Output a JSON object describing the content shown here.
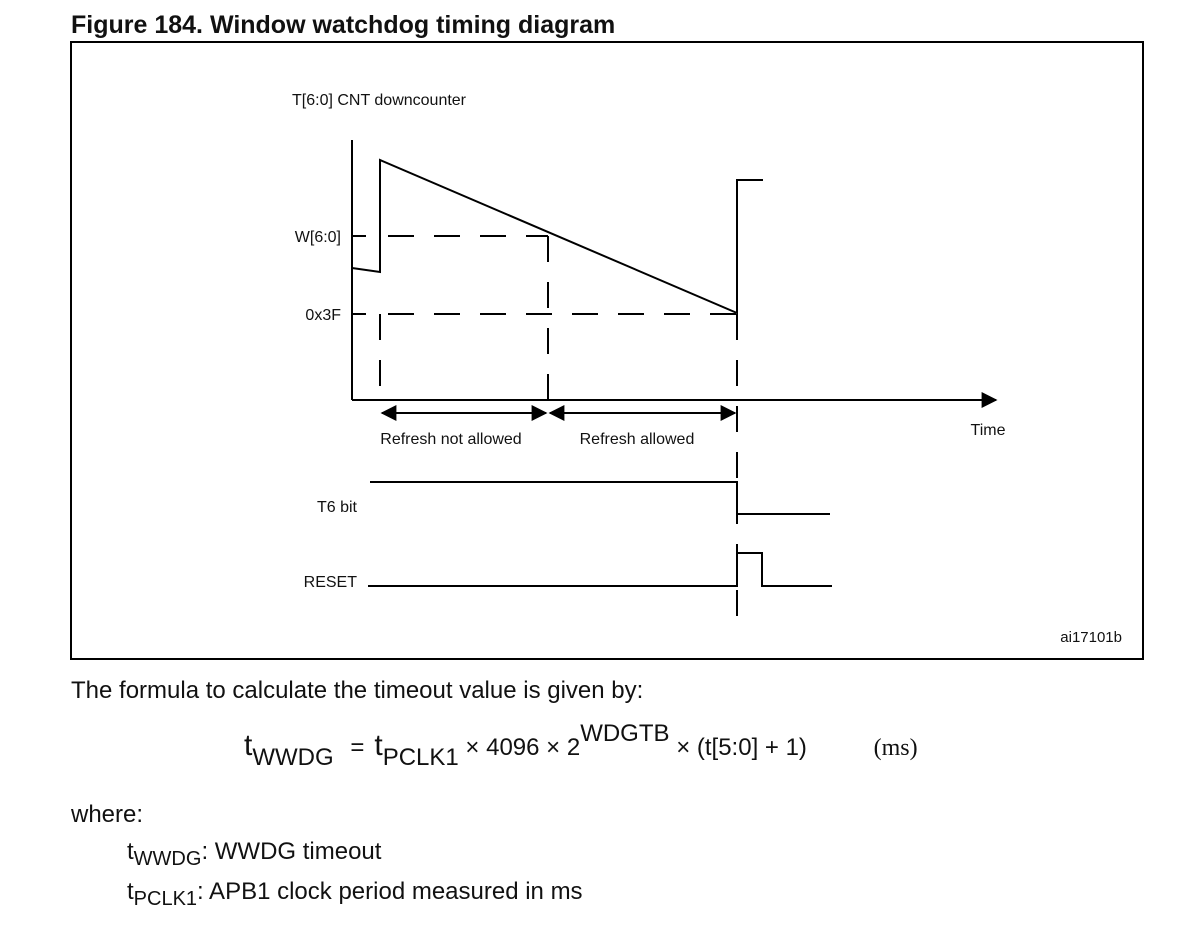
{
  "figure": {
    "title": "Figure 184. Window watchdog timing diagram",
    "y_axis_label": "T[6:0] CNT downcounter",
    "window_label": "W[6:0]",
    "threshold_label": "0x3F",
    "refresh_not_allowed": "Refresh not allowed",
    "refresh_allowed": "Refresh allowed",
    "x_axis_label": "Time",
    "t6_label": "T6 bit",
    "reset_label": "RESET",
    "ref": "ai17101b"
  },
  "body": {
    "intro": "The formula to calculate the timeout value is given by:",
    "formula": {
      "lhs": "t",
      "lhs_sub": "WWDG",
      "eq": "=",
      "t": "t",
      "t_sub": "PCLK1",
      "mult": "× 4096 × 2",
      "exp": "WDGTB",
      "tail": "× (t[5:0] + 1)",
      "unit": "(ms)"
    },
    "where": "where:",
    "definitions": [
      {
        "t": "t",
        "sub": "WWDG",
        "text": ": WWDG timeout"
      },
      {
        "t": "t",
        "sub": "PCLK1",
        "text": ": APB1 clock period measured in ms"
      }
    ]
  }
}
